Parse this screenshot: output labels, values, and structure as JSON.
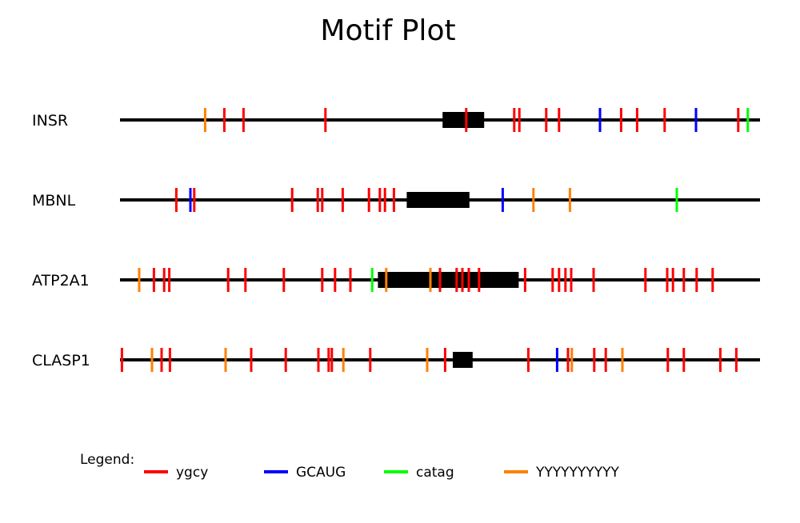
{
  "chart_data": {
    "type": "motif-track",
    "title": "Motif Plot",
    "x_range": [
      0,
      100
    ],
    "legend_title": "Legend:",
    "motifs": [
      {
        "name": "ygcy",
        "color": "#ff0000"
      },
      {
        "name": "GCAUG",
        "color": "#0000ff"
      },
      {
        "name": "catag",
        "color": "#00ff00"
      },
      {
        "name": "YYYYYYYYYY",
        "color": "#ff8000"
      }
    ],
    "tracks": [
      {
        "label": "INSR",
        "box": [
          50.4,
          56.9
        ],
        "ticks": [
          {
            "motif": "YYYYYYYYYY",
            "x": 13.3
          },
          {
            "motif": "ygcy",
            "x": 16.3
          },
          {
            "motif": "ygcy",
            "x": 19.3
          },
          {
            "motif": "ygcy",
            "x": 32.1
          },
          {
            "motif": "ygcy",
            "x": 54.1
          },
          {
            "motif": "ygcy",
            "x": 61.6
          },
          {
            "motif": "ygcy",
            "x": 62.4
          },
          {
            "motif": "ygcy",
            "x": 66.6
          },
          {
            "motif": "ygcy",
            "x": 68.6
          },
          {
            "motif": "GCAUG",
            "x": 75.0
          },
          {
            "motif": "ygcy",
            "x": 78.3
          },
          {
            "motif": "ygcy",
            "x": 80.8
          },
          {
            "motif": "ygcy",
            "x": 85.1
          },
          {
            "motif": "GCAUG",
            "x": 90.0
          },
          {
            "motif": "ygcy",
            "x": 96.6
          },
          {
            "motif": "catag",
            "x": 98.1
          }
        ]
      },
      {
        "label": "MBNL",
        "box": [
          44.8,
          54.6
        ],
        "ticks": [
          {
            "motif": "ygcy",
            "x": 8.8
          },
          {
            "motif": "GCAUG",
            "x": 11.0
          },
          {
            "motif": "ygcy",
            "x": 11.6
          },
          {
            "motif": "ygcy",
            "x": 26.9
          },
          {
            "motif": "ygcy",
            "x": 30.9
          },
          {
            "motif": "ygcy",
            "x": 31.6
          },
          {
            "motif": "ygcy",
            "x": 34.8
          },
          {
            "motif": "ygcy",
            "x": 38.9
          },
          {
            "motif": "ygcy",
            "x": 40.6
          },
          {
            "motif": "ygcy",
            "x": 41.4
          },
          {
            "motif": "ygcy",
            "x": 42.8
          },
          {
            "motif": "GCAUG",
            "x": 59.8
          },
          {
            "motif": "YYYYYYYYYY",
            "x": 64.6
          },
          {
            "motif": "YYYYYYYYYY",
            "x": 70.3
          },
          {
            "motif": "catag",
            "x": 87.0
          }
        ]
      },
      {
        "label": "ATP2A1",
        "box": [
          40.3,
          62.3
        ],
        "ticks": [
          {
            "motif": "YYYYYYYYYY",
            "x": 3.0
          },
          {
            "motif": "ygcy",
            "x": 5.3
          },
          {
            "motif": "ygcy",
            "x": 6.9
          },
          {
            "motif": "ygcy",
            "x": 7.7
          },
          {
            "motif": "ygcy",
            "x": 16.9
          },
          {
            "motif": "ygcy",
            "x": 19.6
          },
          {
            "motif": "ygcy",
            "x": 25.6
          },
          {
            "motif": "ygcy",
            "x": 31.6
          },
          {
            "motif": "ygcy",
            "x": 33.6
          },
          {
            "motif": "ygcy",
            "x": 36.0
          },
          {
            "motif": "catag",
            "x": 39.4
          },
          {
            "motif": "YYYYYYYYYY",
            "x": 41.6
          },
          {
            "motif": "YYYYYYYYYY",
            "x": 48.5
          },
          {
            "motif": "ygcy",
            "x": 50.0
          },
          {
            "motif": "ygcy",
            "x": 52.6
          },
          {
            "motif": "ygcy",
            "x": 53.5
          },
          {
            "motif": "ygcy",
            "x": 54.5
          },
          {
            "motif": "ygcy",
            "x": 56.1
          },
          {
            "motif": "ygcy",
            "x": 63.3
          },
          {
            "motif": "ygcy",
            "x": 67.6
          },
          {
            "motif": "ygcy",
            "x": 68.6
          },
          {
            "motif": "ygcy",
            "x": 69.6
          },
          {
            "motif": "ygcy",
            "x": 70.5
          },
          {
            "motif": "ygcy",
            "x": 74.0
          },
          {
            "motif": "ygcy",
            "x": 82.1
          },
          {
            "motif": "ygcy",
            "x": 85.5
          },
          {
            "motif": "ygcy",
            "x": 86.4
          },
          {
            "motif": "ygcy",
            "x": 88.1
          },
          {
            "motif": "ygcy",
            "x": 90.1
          },
          {
            "motif": "ygcy",
            "x": 92.6
          }
        ]
      },
      {
        "label": "CLASP1",
        "box": [
          52.0,
          55.1
        ],
        "ticks": [
          {
            "motif": "ygcy",
            "x": 0.3
          },
          {
            "motif": "YYYYYYYYYY",
            "x": 5.0
          },
          {
            "motif": "ygcy",
            "x": 6.5
          },
          {
            "motif": "ygcy",
            "x": 7.8
          },
          {
            "motif": "YYYYYYYYYY",
            "x": 16.5
          },
          {
            "motif": "ygcy",
            "x": 20.5
          },
          {
            "motif": "ygcy",
            "x": 25.9
          },
          {
            "motif": "ygcy",
            "x": 31.0
          },
          {
            "motif": "ygcy",
            "x": 32.6
          },
          {
            "motif": "ygcy",
            "x": 33.1
          },
          {
            "motif": "YYYYYYYYYY",
            "x": 34.9
          },
          {
            "motif": "ygcy",
            "x": 39.1
          },
          {
            "motif": "YYYYYYYYYY",
            "x": 48.0
          },
          {
            "motif": "ygcy",
            "x": 50.8
          },
          {
            "motif": "ygcy",
            "x": 63.8
          },
          {
            "motif": "GCAUG",
            "x": 68.3
          },
          {
            "motif": "ygcy",
            "x": 70.0
          },
          {
            "motif": "YYYYYYYYYY",
            "x": 70.6
          },
          {
            "motif": "ygcy",
            "x": 74.1
          },
          {
            "motif": "ygcy",
            "x": 75.9
          },
          {
            "motif": "YYYYYYYYYY",
            "x": 78.5
          },
          {
            "motif": "ygcy",
            "x": 85.6
          },
          {
            "motif": "ygcy",
            "x": 88.1
          },
          {
            "motif": "ygcy",
            "x": 93.8
          },
          {
            "motif": "ygcy",
            "x": 96.3
          }
        ]
      }
    ]
  }
}
